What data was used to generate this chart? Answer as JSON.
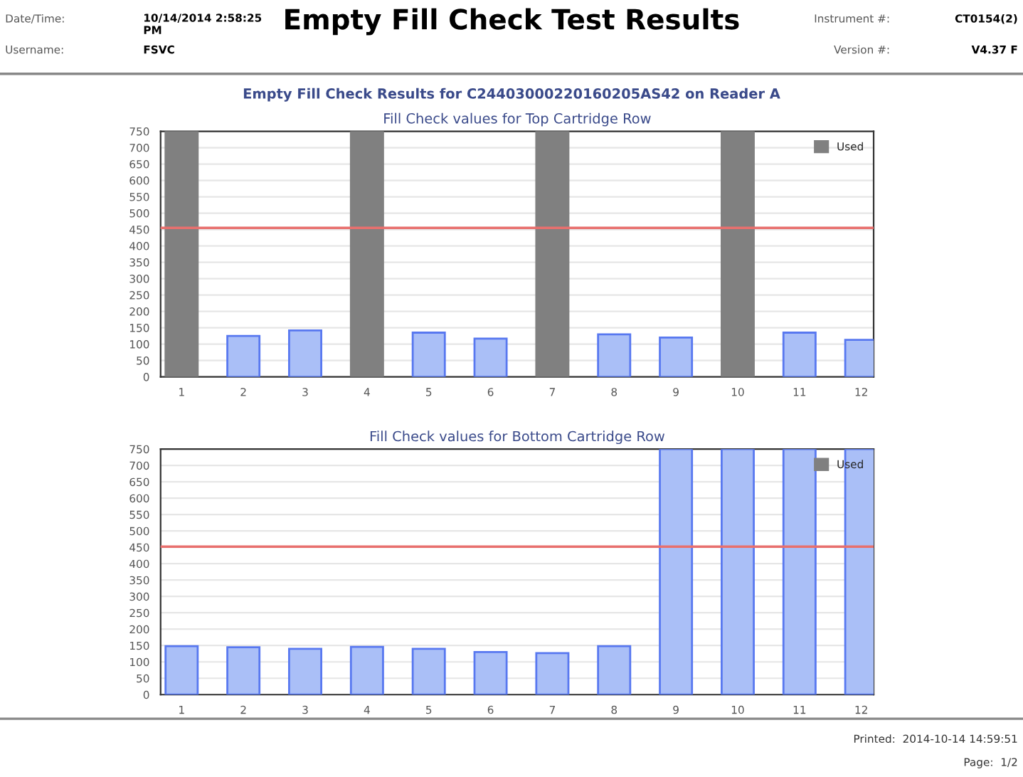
{
  "chart_data": [
    {
      "type": "bar",
      "title": "Fill Check values for Top Cartridge Row",
      "categories": [
        "1",
        "2",
        "3",
        "4",
        "5",
        "6",
        "7",
        "8",
        "9",
        "10",
        "11",
        "12"
      ],
      "series": [
        {
          "color": "#aabff7",
          "values": [
            null,
            125,
            142,
            null,
            135,
            117,
            null,
            130,
            120,
            null,
            135,
            113
          ]
        },
        {
          "name": "Used",
          "color": "#808080",
          "values": [
            750,
            null,
            null,
            750,
            null,
            null,
            750,
            null,
            null,
            750,
            null,
            null
          ]
        }
      ],
      "ylim": [
        0,
        750
      ],
      "yticks": [
        0,
        50,
        100,
        150,
        200,
        250,
        300,
        350,
        400,
        450,
        500,
        550,
        600,
        650,
        700,
        750
      ],
      "ref_lines": [
        {
          "axis": "y",
          "value": 455,
          "color": "#e8706e"
        }
      ],
      "grid": "y",
      "legend": "top right",
      "annotations": [
        "Empty Fill Check Test Results",
        "Date/Time:",
        "10/14/2014 2:58:25\nPM",
        "Username:",
        "FSVC",
        "Instrument #:",
        "CT0154(2)",
        "Version #:",
        "V4.37 F",
        "Empty Fill Check Results for C24403000220160205AS42 on Reader A"
      ]
    },
    {
      "type": "bar",
      "title": "Fill Check values for Bottom Cartridge Row",
      "categories": [
        "1",
        "2",
        "3",
        "4",
        "5",
        "6",
        "7",
        "8",
        "9",
        "10",
        "11",
        "12"
      ],
      "series": [
        {
          "color": "#aabff7",
          "values": [
            148,
            145,
            140,
            146,
            140,
            130,
            127,
            148,
            750,
            750,
            750,
            750
          ]
        },
        {
          "name": "Used",
          "color": "#808080",
          "values": [
            null,
            null,
            null,
            null,
            null,
            null,
            null,
            null,
            null,
            null,
            null,
            null
          ]
        }
      ],
      "ylim": [
        0,
        750
      ],
      "yticks": [
        0,
        50,
        100,
        150,
        200,
        250,
        300,
        350,
        400,
        450,
        500,
        550,
        600,
        650,
        700,
        750
      ],
      "ref_lines": [
        {
          "axis": "y",
          "value": 452,
          "color": "#e8706e"
        }
      ],
      "grid": "y",
      "legend": "top right",
      "annotations": [
        "Printed:  2014-10-14 14:59:51",
        "Page:  1/2"
      ]
    }
  ]
}
